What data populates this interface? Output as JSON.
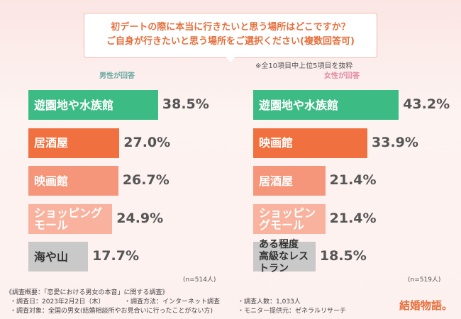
{
  "header": {
    "question": [
      "初デートの際に本当に行きたいと思う場所はどこですか？",
      "ご自身が行きたいと思う場所をご選択ください(複数回答可)"
    ],
    "note": "※全10項目中上位5項目を抜粋"
  },
  "chart_data": [
    {
      "type": "bar",
      "subtitle": "男性が回答",
      "categories": [
        "遊園地や水族館",
        "居酒屋",
        "映画館",
        "ショッピングモール",
        "海や山"
      ],
      "values": [
        38.5,
        27.0,
        26.7,
        24.9,
        17.7
      ],
      "value_labels": [
        "38.5%",
        "27.0%",
        "26.7%",
        "24.9%",
        "17.7%"
      ],
      "colors": [
        "#3dbb85",
        "#f0703f",
        "#f5957a",
        "#f8b29e",
        "#c9c9c9"
      ],
      "sample": "(n=514人)"
    },
    {
      "type": "bar",
      "subtitle": "女性が回答",
      "categories": [
        "遊園地や水族館",
        "映画館",
        "居酒屋",
        "ショッピングモール",
        "ある程度\n高級なレストラン"
      ],
      "values": [
        43.2,
        33.9,
        21.4,
        21.4,
        18.5
      ],
      "value_labels": [
        "43.2%",
        "33.9%",
        "21.4%",
        "21.4%",
        "18.5%"
      ],
      "colors": [
        "#3dbb85",
        "#f0703f",
        "#f5957a",
        "#f8b29e",
        "#c9c9c9"
      ],
      "sample": "(n=519人)"
    }
  ],
  "footer": {
    "lines": [
      "《調査概要：「恋愛における男女の本音」に関する調査》",
      "・調査日：2023年2月2日（木）",
      "・調査方法：インターネット調査",
      "・調査人数：1,033人",
      "・調査対象：全国の男女(結婚相談所やお見合いに行ったことがない方)",
      "・モニター提供元：ゼネラルリサーチ"
    ],
    "logo": "結婚物語。"
  }
}
